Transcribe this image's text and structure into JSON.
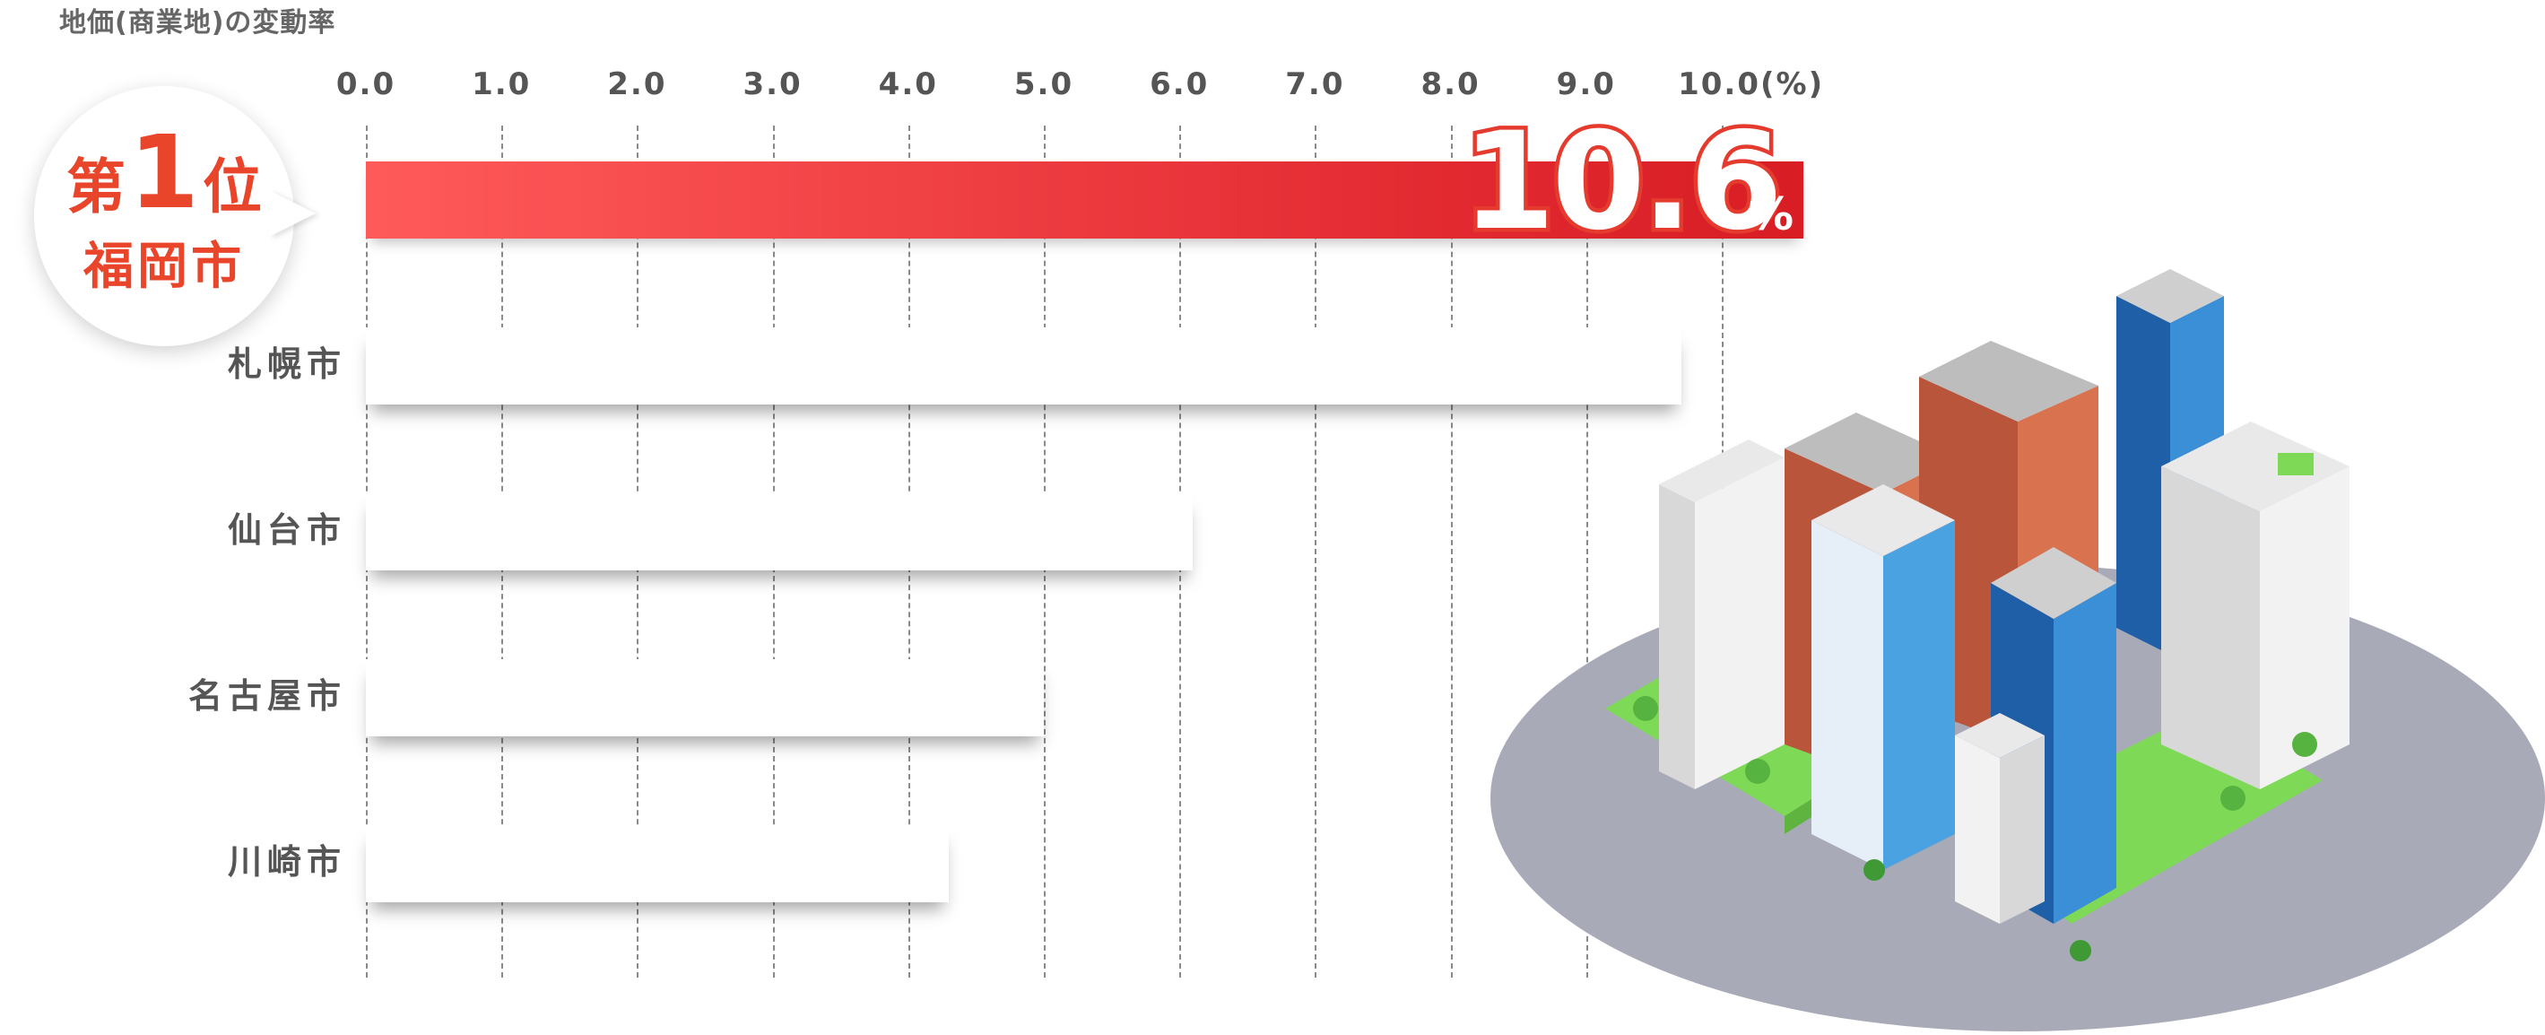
{
  "title": "地価(商業地)の変動率",
  "axis": {
    "unit_suffix": "(%)"
  },
  "badge": {
    "rank_prefix": "第",
    "rank_number": "1",
    "rank_suffix": "位",
    "city": "福岡市"
  },
  "top_value": {
    "value": "10.6",
    "unit": "%"
  },
  "colors": {
    "accent": "#e8452a",
    "bar_top": "#e0262e",
    "grid": "#8a8a8a"
  },
  "chart_data": {
    "type": "bar",
    "orientation": "horizontal",
    "title": "地価(商業地)の変動率",
    "categories": [
      "福岡市",
      "札幌市",
      "仙台市",
      "名古屋市",
      "川崎市"
    ],
    "values": [
      10.6,
      9.7,
      6.1,
      5.0,
      4.3
    ],
    "xlim": [
      0,
      10.6
    ],
    "ticks": [
      "0.0",
      "1.0",
      "2.0",
      "3.0",
      "4.0",
      "5.0",
      "6.0",
      "7.0",
      "8.0",
      "9.0",
      "10.0"
    ],
    "grid": true,
    "legend": "none"
  }
}
